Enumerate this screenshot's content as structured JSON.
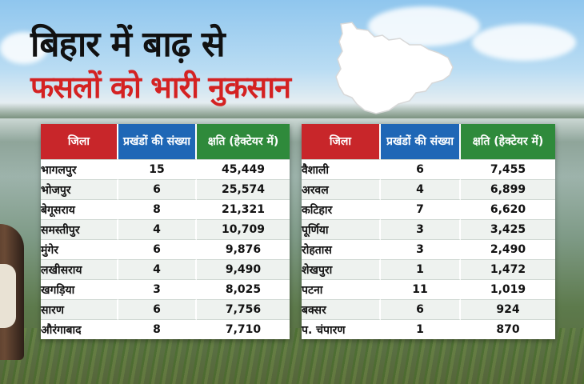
{
  "headline": {
    "line1": "बिहार में बाढ़ से",
    "line2": "फसलों को भारी नुकसान"
  },
  "colors": {
    "district_header": "#c8262a",
    "blocks_header": "#1f67b6",
    "damage_header": "#2f8a3b",
    "headline_line2": "#d42222"
  },
  "icons": [
    "bihar-map-icon"
  ],
  "tables": [
    {
      "columns": [
        "जिला",
        "प्रखंडों की संख्या",
        "क्षति (हेक्टेयर में)"
      ],
      "rows": [
        {
          "district": "भागलपुर",
          "blocks": "15",
          "damage": "45,449"
        },
        {
          "district": "भोजपुर",
          "blocks": "6",
          "damage": "25,574"
        },
        {
          "district": "बेगूसराय",
          "blocks": "8",
          "damage": "21,321"
        },
        {
          "district": "समस्तीपुर",
          "blocks": "4",
          "damage": "10,709"
        },
        {
          "district": "मुंगेर",
          "blocks": "6",
          "damage": "9,876"
        },
        {
          "district": "लखीसराय",
          "blocks": "4",
          "damage": "9,490"
        },
        {
          "district": "खगड़िया",
          "blocks": "3",
          "damage": "8,025"
        },
        {
          "district": "सारण",
          "blocks": "6",
          "damage": "7,756"
        },
        {
          "district": "औरंगाबाद",
          "blocks": "8",
          "damage": "7,710"
        }
      ]
    },
    {
      "columns": [
        "जिला",
        "प्रखंडों की संख्या",
        "क्षति (हेक्टेयर में)"
      ],
      "rows": [
        {
          "district": "वैशाली",
          "blocks": "6",
          "damage": "7,455"
        },
        {
          "district": "अरवल",
          "blocks": "4",
          "damage": "6,899"
        },
        {
          "district": "कटिहार",
          "blocks": "7",
          "damage": "6,620"
        },
        {
          "district": "पूर्णिया",
          "blocks": "3",
          "damage": "3,425"
        },
        {
          "district": "रोहतास",
          "blocks": "3",
          "damage": "2,490"
        },
        {
          "district": "शेखपुरा",
          "blocks": "1",
          "damage": "1,472"
        },
        {
          "district": "पटना",
          "blocks": "11",
          "damage": "1,019"
        },
        {
          "district": "बक्सर",
          "blocks": "6",
          "damage": "924"
        },
        {
          "district": "प. चंपारण",
          "blocks": "1",
          "damage": "870"
        }
      ]
    }
  ]
}
